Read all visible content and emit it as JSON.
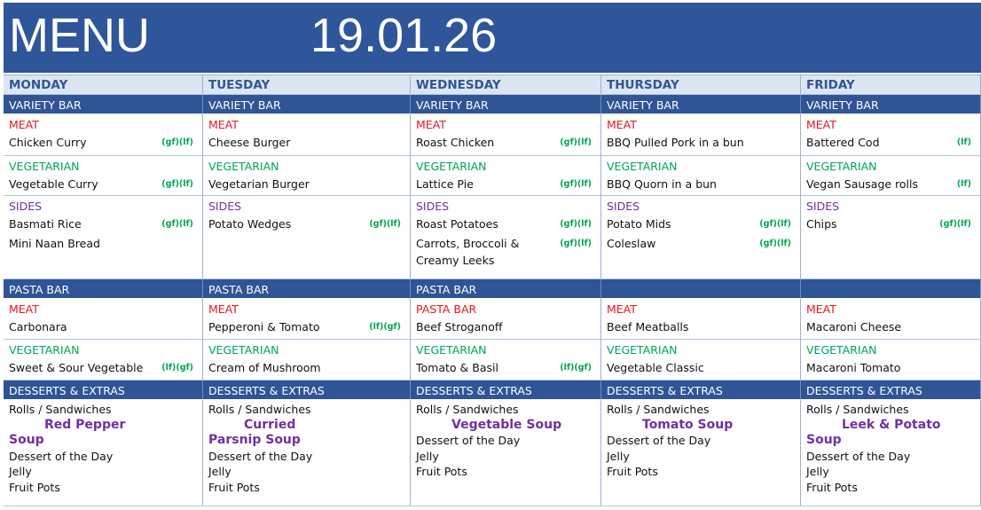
{
  "header": {
    "title": "MENU",
    "date": "19.01.26"
  },
  "days": [
    {
      "name": "MONDAY",
      "variety_bar": {
        "header": "VARIETY BAR",
        "meat": {
          "label": "MEAT",
          "items": [
            {
              "name": "Chicken Curry",
              "tags": "(gf)(lf)"
            }
          ]
        },
        "vegetarian": {
          "label": "VEGETARIAN",
          "items": [
            {
              "name": "Vegetable Curry",
              "tags": "(gf)(lf)"
            }
          ]
        },
        "sides": {
          "label": "SIDES",
          "items": [
            {
              "name": "Basmati Rice",
              "tags": "(gf)(lf)"
            },
            {
              "name": "Mini Naan Bread"
            }
          ]
        }
      },
      "pasta_bar": {
        "header": "PASTA BAR",
        "meat": {
          "label": "MEAT",
          "items": [
            {
              "name": "Carbonara"
            }
          ]
        },
        "vegetarian": {
          "label": "VEGETARIAN",
          "items": [
            {
              "name": "Sweet & Sour Vegetable",
              "tags": "(lf)(gf)"
            }
          ]
        }
      },
      "desserts": {
        "header": "DESSERTS & EXTRAS",
        "before": [
          "Rolls / Sandwiches"
        ],
        "soup": [
          "Red Pepper",
          "Soup"
        ],
        "after": [
          "Dessert of the Day",
          "Jelly",
          "Fruit Pots"
        ]
      }
    },
    {
      "name": "TUESDAY",
      "variety_bar": {
        "header": "VARIETY BAR",
        "meat": {
          "label": "MEAT",
          "items": [
            {
              "name": "Cheese Burger"
            }
          ]
        },
        "vegetarian": {
          "label": "VEGETARIAN",
          "items": [
            {
              "name": "Vegetarian Burger"
            }
          ]
        },
        "sides": {
          "label": "SIDES",
          "items": [
            {
              "name": "Potato Wedges",
              "tags": "(gf)(lf)"
            }
          ]
        }
      },
      "pasta_bar": {
        "header": "PASTA BAR",
        "meat": {
          "label": "MEAT",
          "items": [
            {
              "name": "Pepperoni & Tomato",
              "tags": "(lf)(gf)"
            }
          ]
        },
        "vegetarian": {
          "label": "VEGETARIAN",
          "items": [
            {
              "name": "Cream of Mushroom"
            }
          ]
        }
      },
      "desserts": {
        "header": "DESSERTS & EXTRAS",
        "before": [
          "Rolls / Sandwiches"
        ],
        "soup": [
          "Curried",
          "Parsnip Soup"
        ],
        "after": [
          "Dessert of the Day",
          "Jelly",
          "Fruit Pots"
        ]
      }
    },
    {
      "name": "WEDNESDAY",
      "variety_bar": {
        "header": "VARIETY BAR",
        "meat": {
          "label": "MEAT",
          "items": [
            {
              "name": "Roast Chicken",
              "tags": "(gf)(lf)"
            }
          ]
        },
        "vegetarian": {
          "label": "VEGETARIAN",
          "items": [
            {
              "name": "Lattice Pie",
              "tags": "(gf)(lf)"
            }
          ]
        },
        "sides": {
          "label": "SIDES",
          "items": [
            {
              "name": "Roast Potatoes",
              "tags": "(gf)(lf)"
            },
            {
              "name": "Carrots, Broccoli & Creamy Leeks",
              "tags": "(gf)(lf)"
            }
          ]
        }
      },
      "pasta_bar": {
        "header": "PASTA BAR",
        "meat": {
          "label": "PASTA BAR",
          "items": [
            {
              "name": "Beef Stroganoff"
            }
          ]
        },
        "vegetarian": {
          "label": "VEGETARIAN",
          "items": [
            {
              "name": "Tomato & Basil",
              "tags": "(lf)(gf)"
            }
          ]
        }
      },
      "desserts": {
        "header": "DESSERTS & EXTRAS",
        "before": [
          "Rolls / Sandwiches"
        ],
        "soup": [
          "Vegetable Soup"
        ],
        "after": [
          "Dessert of the Day",
          "Jelly",
          "Fruit Pots"
        ]
      }
    },
    {
      "name": "THURSDAY",
      "variety_bar": {
        "header": "VARIETY BAR",
        "meat": {
          "label": "MEAT",
          "items": [
            {
              "name": "BBQ Pulled Pork in a bun"
            }
          ]
        },
        "vegetarian": {
          "label": "VEGETARIAN",
          "items": [
            {
              "name": "BBQ Quorn in a bun"
            }
          ]
        },
        "sides": {
          "label": "SIDES",
          "items": [
            {
              "name": "Potato Mids",
              "tags": "(gf)(lf)"
            },
            {
              "name": "Coleslaw",
              "tags": "(gf)(lf)"
            }
          ]
        }
      },
      "pasta_bar": {
        "meat": {
          "label": "MEAT",
          "items": [
            {
              "name": "Beef Meatballs"
            }
          ]
        },
        "vegetarian": {
          "label": "VEGETARIAN",
          "items": [
            {
              "name": "Vegetable Classic"
            }
          ]
        }
      },
      "desserts": {
        "header": "DESSERTS & EXTRAS",
        "before": [
          "Rolls / Sandwiches"
        ],
        "soup": [
          "Tomato Soup"
        ],
        "after": [
          "Dessert of the Day",
          "Jelly",
          "Fruit Pots"
        ]
      }
    },
    {
      "name": "FRIDAY",
      "variety_bar": {
        "header": "VARIETY BAR",
        "meat": {
          "label": "MEAT",
          "items": [
            {
              "name": "Battered Cod",
              "tags": "(lf)"
            }
          ]
        },
        "vegetarian": {
          "label": "VEGETARIAN",
          "items": [
            {
              "name": "Vegan Sausage rolls",
              "tags": "(lf)"
            }
          ]
        },
        "sides": {
          "label": "SIDES",
          "items": [
            {
              "name": "Chips",
              "tags": "(gf)(lf)"
            }
          ]
        }
      },
      "pasta_bar": {
        "meat": {
          "label": "MEAT",
          "items": [
            {
              "name": "Macaroni Cheese"
            }
          ]
        },
        "vegetarian": {
          "label": "VEGETARIAN",
          "items": [
            {
              "name": "Macaroni Tomato"
            }
          ]
        }
      },
      "desserts": {
        "header": "DESSERTS & EXTRAS",
        "before": [
          "Rolls / Sandwiches"
        ],
        "soup": [
          "Leek & Potato",
          "Soup"
        ],
        "after": [
          "Dessert of the Day",
          "Jelly",
          "Fruit Pots"
        ]
      }
    }
  ]
}
